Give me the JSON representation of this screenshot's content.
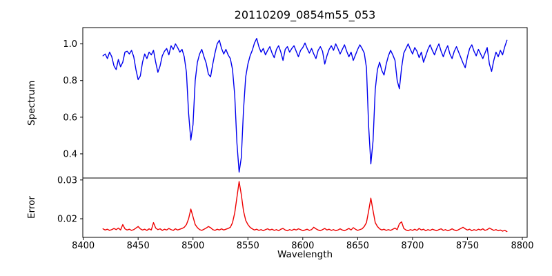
{
  "figure": {
    "background": "#ffffff",
    "axis_color": "#000000"
  },
  "chart_data": {
    "type": "line",
    "title": "20110209_0854m55_053",
    "xlabel": "Wavelength",
    "xlim": [
      8399.6,
      8804.4
    ],
    "xticks": [
      8400,
      8450,
      8500,
      8550,
      8600,
      8650,
      8700,
      8750,
      8800
    ],
    "xtick_labels": [
      "8400",
      "8450",
      "8500",
      "8550",
      "8600",
      "8650",
      "8700",
      "8750",
      "8800"
    ],
    "grid": false,
    "legend": "none",
    "panels": [
      {
        "name": "spectrum",
        "ylabel": "Spectrum",
        "line_color": "#0000ee",
        "ylim": [
          0.268,
          1.089
        ],
        "yticks": [
          0.4,
          0.6,
          0.8,
          1.0
        ],
        "ytick_labels": [
          "0.4",
          "0.6",
          "0.8",
          "1.0"
        ],
        "absorption_features": [
          {
            "wavelength": 8498,
            "depth": 0.475
          },
          {
            "wavelength": 8542,
            "depth": 0.3
          },
          {
            "wavelength": 8662,
            "depth": 0.345
          }
        ],
        "x_start": 8418,
        "x_step": 2,
        "values": [
          0.935,
          0.945,
          0.92,
          0.955,
          0.93,
          0.88,
          0.86,
          0.915,
          0.875,
          0.9,
          0.955,
          0.96,
          0.945,
          0.965,
          0.93,
          0.86,
          0.805,
          0.825,
          0.9,
          0.945,
          0.92,
          0.955,
          0.94,
          0.965,
          0.9,
          0.845,
          0.88,
          0.935,
          0.96,
          0.975,
          0.94,
          0.99,
          0.97,
          1.0,
          0.98,
          0.955,
          0.97,
          0.93,
          0.845,
          0.62,
          0.475,
          0.56,
          0.8,
          0.9,
          0.945,
          0.97,
          0.93,
          0.895,
          0.835,
          0.82,
          0.89,
          0.95,
          1.0,
          1.02,
          0.975,
          0.945,
          0.97,
          0.94,
          0.92,
          0.86,
          0.72,
          0.46,
          0.3,
          0.38,
          0.64,
          0.82,
          0.89,
          0.935,
          0.965,
          1.005,
          1.03,
          0.985,
          0.955,
          0.975,
          0.94,
          0.965,
          0.985,
          0.95,
          0.925,
          0.97,
          0.99,
          0.955,
          0.91,
          0.97,
          0.985,
          0.955,
          0.975,
          0.99,
          0.96,
          0.93,
          0.965,
          0.98,
          1.005,
          0.975,
          0.95,
          0.975,
          0.945,
          0.92,
          0.965,
          0.985,
          0.96,
          0.89,
          0.935,
          0.97,
          0.99,
          0.965,
          1.0,
          0.975,
          0.945,
          0.97,
          0.995,
          0.96,
          0.93,
          0.955,
          0.91,
          0.94,
          0.97,
          0.995,
          0.975,
          0.95,
          0.87,
          0.55,
          0.345,
          0.47,
          0.75,
          0.86,
          0.9,
          0.855,
          0.83,
          0.89,
          0.935,
          0.965,
          0.94,
          0.91,
          0.8,
          0.755,
          0.87,
          0.95,
          0.975,
          1.0,
          0.97,
          0.945,
          0.98,
          0.96,
          0.925,
          0.955,
          0.9,
          0.935,
          0.97,
          0.995,
          0.965,
          0.94,
          0.975,
          1.0,
          0.96,
          0.93,
          0.965,
          0.99,
          0.945,
          0.92,
          0.96,
          0.985,
          0.955,
          0.925,
          0.895,
          0.87,
          0.93,
          0.975,
          0.995,
          0.96,
          0.935,
          0.97,
          0.945,
          0.92,
          0.95,
          0.98,
          0.89,
          0.85,
          0.91,
          0.955,
          0.93,
          0.965,
          0.94,
          0.985,
          1.02
        ]
      },
      {
        "name": "error",
        "ylabel": "Error",
        "line_color": "#ee0000",
        "ylim": [
          0.0152,
          0.0305
        ],
        "yticks": [
          0.02,
          0.03
        ],
        "ytick_labels": [
          "0.02",
          "0.03"
        ],
        "peak_features": [
          {
            "wavelength": 8498,
            "height": 0.0225
          },
          {
            "wavelength": 8542,
            "height": 0.0296
          },
          {
            "wavelength": 8662,
            "height": 0.0253
          }
        ],
        "x_start": 8418,
        "x_step": 2,
        "values": [
          0.0174,
          0.0171,
          0.0173,
          0.017,
          0.0172,
          0.0175,
          0.0172,
          0.0176,
          0.0171,
          0.0185,
          0.0174,
          0.0171,
          0.0173,
          0.017,
          0.0172,
          0.0176,
          0.018,
          0.0174,
          0.0171,
          0.0173,
          0.017,
          0.0174,
          0.0171,
          0.019,
          0.0176,
          0.0172,
          0.0174,
          0.017,
          0.0173,
          0.0171,
          0.0175,
          0.0172,
          0.017,
          0.0174,
          0.0171,
          0.0173,
          0.0175,
          0.0178,
          0.0185,
          0.02,
          0.0225,
          0.0205,
          0.0185,
          0.0177,
          0.0172,
          0.017,
          0.0173,
          0.0176,
          0.018,
          0.0177,
          0.0172,
          0.017,
          0.0173,
          0.0171,
          0.0174,
          0.0171,
          0.0173,
          0.0175,
          0.0178,
          0.019,
          0.0215,
          0.0255,
          0.0296,
          0.0262,
          0.022,
          0.0196,
          0.0185,
          0.0178,
          0.0174,
          0.0171,
          0.0173,
          0.017,
          0.0172,
          0.0169,
          0.0172,
          0.0174,
          0.0171,
          0.0173,
          0.017,
          0.0172,
          0.0169,
          0.0173,
          0.0175,
          0.0171,
          0.0169,
          0.0172,
          0.017,
          0.0173,
          0.0171,
          0.0174,
          0.0172,
          0.0169,
          0.0171,
          0.0173,
          0.017,
          0.0172,
          0.0178,
          0.0174,
          0.0171,
          0.0169,
          0.0172,
          0.0175,
          0.0171,
          0.0173,
          0.017,
          0.0172,
          0.0169,
          0.0171,
          0.0174,
          0.0171,
          0.0169,
          0.0172,
          0.0175,
          0.0171,
          0.0177,
          0.0173,
          0.017,
          0.0172,
          0.0174,
          0.018,
          0.019,
          0.022,
          0.0253,
          0.0221,
          0.019,
          0.018,
          0.0174,
          0.0171,
          0.0173,
          0.017,
          0.0172,
          0.017,
          0.0173,
          0.0176,
          0.0172,
          0.0187,
          0.0192,
          0.0175,
          0.0171,
          0.0169,
          0.0172,
          0.017,
          0.0173,
          0.017,
          0.0175,
          0.0171,
          0.0173,
          0.0169,
          0.0172,
          0.017,
          0.0173,
          0.0171,
          0.0169,
          0.0172,
          0.0174,
          0.017,
          0.0172,
          0.0169,
          0.0171,
          0.0174,
          0.0171,
          0.0169,
          0.0172,
          0.0175,
          0.0178,
          0.0174,
          0.0171,
          0.0173,
          0.0169,
          0.0172,
          0.017,
          0.0173,
          0.0171,
          0.0174,
          0.017,
          0.0172,
          0.0176,
          0.0173,
          0.017,
          0.0172,
          0.0169,
          0.0171,
          0.0168,
          0.017,
          0.0167
        ]
      }
    ]
  }
}
